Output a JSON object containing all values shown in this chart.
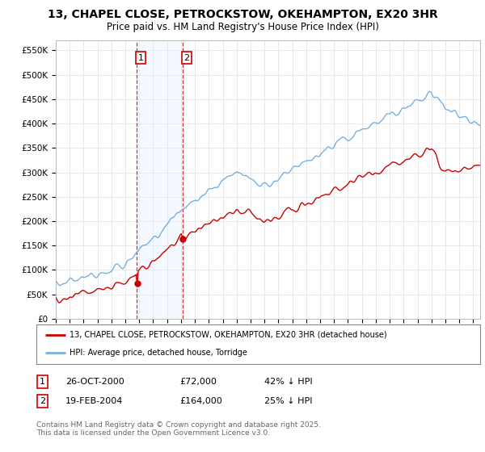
{
  "title": "13, CHAPEL CLOSE, PETROCKSTOW, OKEHAMPTON, EX20 3HR",
  "subtitle": "Price paid vs. HM Land Registry's House Price Index (HPI)",
  "ylabel_ticks": [
    "£0",
    "£50K",
    "£100K",
    "£150K",
    "£200K",
    "£250K",
    "£300K",
    "£350K",
    "£400K",
    "£450K",
    "£500K",
    "£550K"
  ],
  "ytick_values": [
    0,
    50000,
    100000,
    150000,
    200000,
    250000,
    300000,
    350000,
    400000,
    450000,
    500000,
    550000
  ],
  "ylim": [
    0,
    570000
  ],
  "hpi_color": "#7aafe0",
  "price_color": "#cc0000",
  "shade_color": "#ddeeff",
  "vline_color": "#cc0000",
  "transactions": [
    {
      "date_num": 2000.82,
      "price": 72000,
      "label": "1"
    },
    {
      "date_num": 2004.12,
      "price": 164000,
      "label": "2"
    }
  ],
  "legend_price_label": "13, CHAPEL CLOSE, PETROCKSTOW, OKEHAMPTON, EX20 3HR (detached house)",
  "legend_hpi_label": "HPI: Average price, detached house, Torridge",
  "table_rows": [
    {
      "num": "1",
      "date": "26-OCT-2000",
      "price": "£72,000",
      "hpi": "42% ↓ HPI"
    },
    {
      "num": "2",
      "date": "19-FEB-2004",
      "price": "£164,000",
      "hpi": "25% ↓ HPI"
    }
  ],
  "footer": "Contains HM Land Registry data © Crown copyright and database right 2025.\nThis data is licensed under the Open Government Licence v3.0.",
  "background_color": "#ffffff",
  "grid_color": "#e0e0e0"
}
